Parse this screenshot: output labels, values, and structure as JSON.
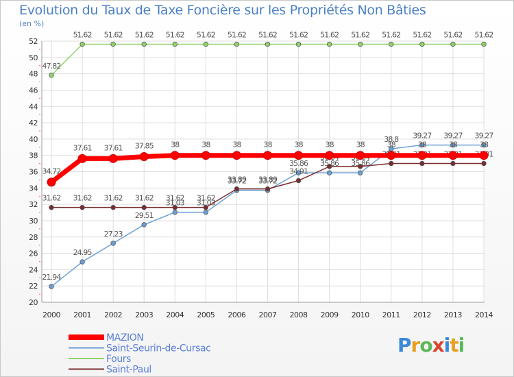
{
  "header": {
    "title": "Evolution du Taux de Taxe Foncière sur les Propriétés Non Bâties",
    "unit": "(en %)"
  },
  "logo": {
    "text": "Proxiti",
    "letters": [
      {
        "ch": "P",
        "color": "#3b8ad8"
      },
      {
        "ch": "r",
        "color": "#e8a020"
      },
      {
        "ch": "o",
        "color": "#5cb85c"
      },
      {
        "ch": "x",
        "color": "#d9452f"
      },
      {
        "ch": "i",
        "color": "#3b8ad8"
      },
      {
        "ch": "t",
        "color": "#e8a020"
      },
      {
        "ch": "i",
        "color": "#5cb85c"
      }
    ]
  },
  "chart_data": {
    "type": "line",
    "title": "Evolution du Taux de Taxe Foncière sur les Propriétés Non Bâties",
    "ylabel": "(en %)",
    "xlabel": "",
    "ylim": [
      20,
      52
    ],
    "yticks": [
      "20",
      "22",
      "24",
      "26",
      "28",
      "30",
      "32",
      "34",
      "36",
      "38",
      "40",
      "42",
      "44",
      "46",
      "48",
      "50",
      "52"
    ],
    "categories": [
      "2000",
      "2001",
      "2002",
      "2003",
      "2004",
      "2005",
      "2006",
      "2007",
      "2008",
      "2009",
      "2010",
      "2011",
      "2012",
      "2013",
      "2014"
    ],
    "grid": true,
    "legend": "bottom-left",
    "series": [
      {
        "name": "MAZION",
        "color": "#ff0000",
        "values": [
          34.72,
          37.61,
          37.61,
          37.85,
          38,
          38,
          38,
          38,
          38,
          38,
          38,
          38,
          38,
          38,
          38
        ],
        "labels": [
          "34.72",
          "37.61",
          "37.61",
          "37.85",
          "38",
          "38",
          "38",
          "38",
          "38",
          "38",
          "38",
          "38",
          "38",
          "38",
          "38"
        ]
      },
      {
        "name": "Saint-Seurin-de-Cursac",
        "color": "#6a9fd6",
        "values": [
          21.94,
          24.95,
          27.23,
          29.51,
          31.03,
          31.03,
          33.72,
          33.72,
          35.86,
          35.86,
          35.86,
          38.8,
          39.27,
          39.27,
          39.27
        ],
        "labels": [
          "21.94",
          "24.95",
          "27.23",
          "29.51",
          "31.03",
          "31.03",
          "33.72",
          "33.72",
          "35.86",
          "35.86",
          "35.86",
          "38.8",
          "39.27",
          "39.27",
          "39.27"
        ]
      },
      {
        "name": "Fours",
        "color": "#8fd36a",
        "values": [
          47.82,
          51.62,
          51.62,
          51.62,
          51.62,
          51.62,
          51.62,
          51.62,
          51.62,
          51.62,
          51.62,
          51.62,
          51.62,
          51.62,
          51.62
        ],
        "labels": [
          "47.82",
          "51.62",
          "51.62",
          "51.62",
          "51.62",
          "51.62",
          "51.62",
          "51.62",
          "51.62",
          "51.62",
          "51.62",
          "51.62",
          "51.62",
          "51.62",
          "51.62"
        ]
      },
      {
        "name": "Saint-Paul",
        "color": "#7a2d2d",
        "values": [
          31.62,
          31.62,
          31.62,
          31.62,
          31.62,
          31.62,
          33.89,
          33.89,
          34.91,
          36.64,
          36.64,
          37.01,
          37.01,
          37.01,
          37.01
        ],
        "labels": [
          "31.62",
          "31.62",
          "31.62",
          "31.62",
          "31.62",
          "31.62",
          "33.89",
          "33.89",
          "34.91",
          "36.64",
          "36.64",
          "37.01",
          "37.01",
          "37.01",
          "37.01"
        ]
      }
    ]
  }
}
